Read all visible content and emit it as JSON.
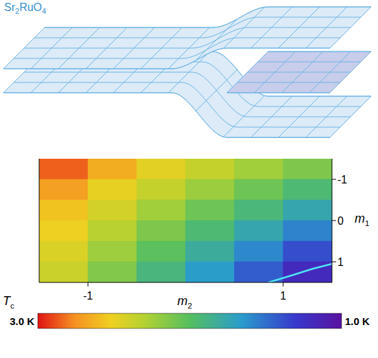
{
  "diagram": {
    "label": "Sr2RuO4"
  },
  "chart_data": {
    "type": "heatmap",
    "x_label": "m2",
    "y_label": "m1",
    "colorbar_label": "Tc",
    "xlim": [
      -1.5,
      1.5
    ],
    "ylim": [
      1.5,
      -1.5
    ],
    "xticks": [
      -1,
      1
    ],
    "yticks": [
      -1,
      0,
      1
    ],
    "x_edges": [
      -1.5,
      -1,
      -0.5,
      0,
      0.5,
      1,
      1.5
    ],
    "y_edges": [
      -1.5,
      -1,
      -0.5,
      0,
      0.5,
      1,
      1.5
    ],
    "cells": [
      [
        2.85,
        2.65,
        2.47,
        2.36,
        2.24,
        2.13
      ],
      [
        2.7,
        2.49,
        2.36,
        2.22,
        2.08,
        1.94
      ],
      [
        2.57,
        2.41,
        2.24,
        2.08,
        1.92,
        1.76
      ],
      [
        2.51,
        2.32,
        2.13,
        1.94,
        1.76,
        1.57
      ],
      [
        2.44,
        2.23,
        2.02,
        1.81,
        1.59,
        1.38
      ],
      [
        2.38,
        2.14,
        1.91,
        1.67,
        1.43,
        1.19
      ]
    ],
    "colorbar": {
      "range": [
        1,
        3
      ],
      "ticks": [
        {
          "value": 3,
          "label": "3.0 K"
        },
        {
          "value": 1,
          "label": "1.0 K"
        }
      ]
    },
    "contour": {
      "color": "#4ee6f5",
      "x": [
        0.85,
        1.1,
        1.3,
        1.5
      ],
      "y": [
        1.5,
        1.32,
        1.17,
        1.05
      ]
    }
  }
}
